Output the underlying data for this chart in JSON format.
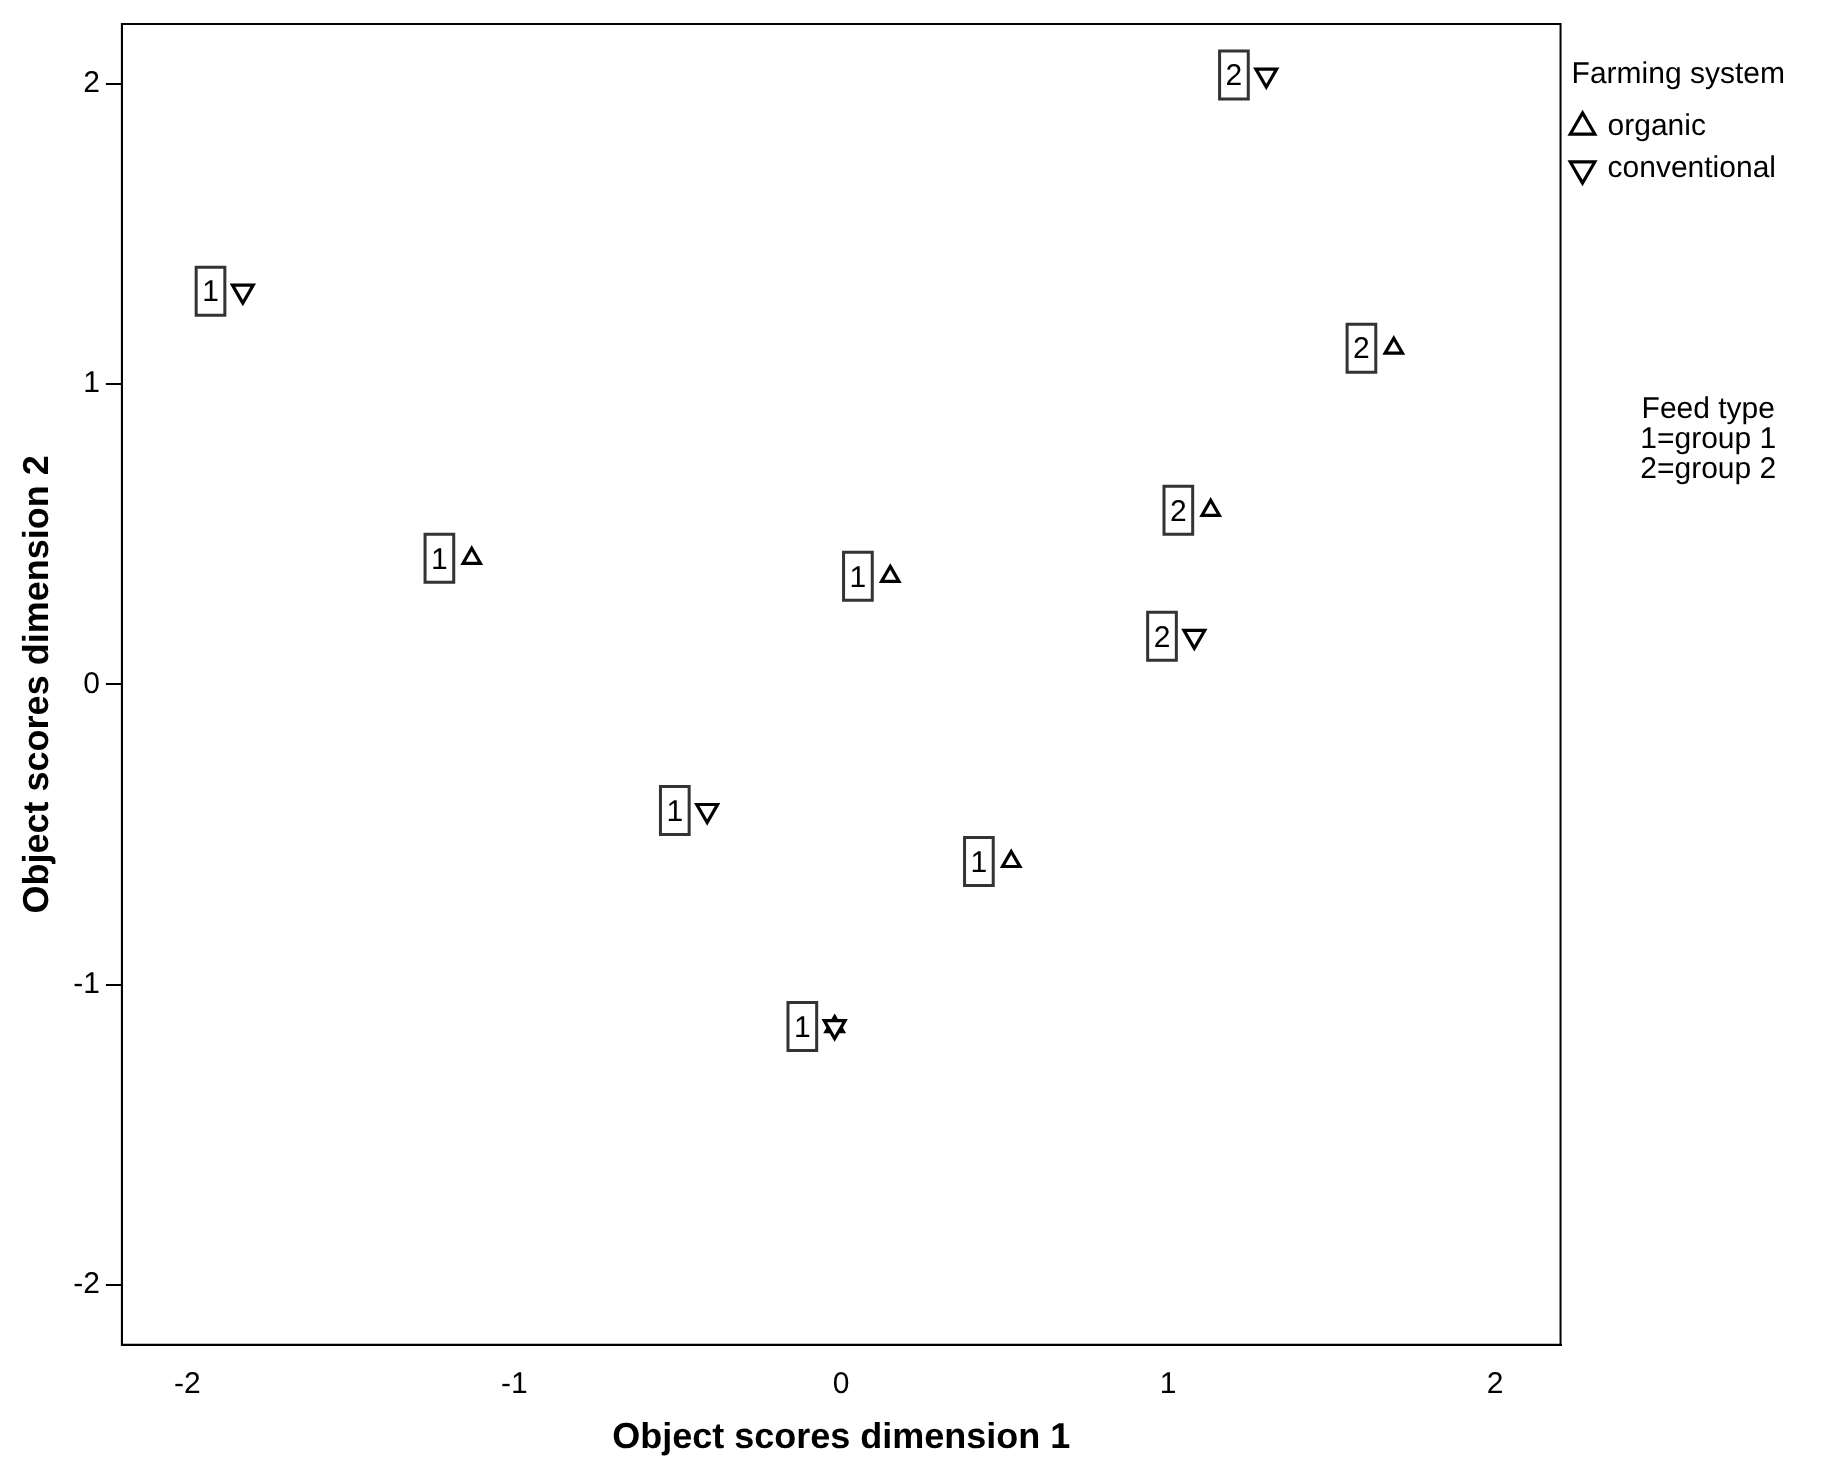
{
  "chart_data": {
    "type": "scatter",
    "xlabel": "Object scores dimension 1",
    "ylabel": "Object scores dimension 2",
    "legend_title": "Farming system",
    "annotations": [
      "Feed type",
      "1=group 1",
      "2=group 2",
      {
        "text": "2",
        "x": 1.69,
        "y": 1.12
      },
      {
        "text": "1",
        "x": -1.13,
        "y": 0.42
      },
      {
        "text": "1",
        "x": 0.15,
        "y": 0.36
      },
      {
        "text": "2",
        "x": 1.13,
        "y": 0.58
      },
      {
        "text": "1",
        "x": 0.52,
        "y": -0.59
      },
      {
        "text": "1",
        "x": -0.02,
        "y": -1.14
      },
      {
        "text": "1",
        "x": -1.83,
        "y": 1.31
      },
      {
        "text": "2",
        "x": 1.3,
        "y": 2.03
      },
      {
        "text": "2",
        "x": 1.08,
        "y": 0.16
      },
      {
        "text": "1",
        "x": -0.41,
        "y": -0.42
      }
    ],
    "xlim": [
      -2.2,
      2.2
    ],
    "ylim": [
      -2.2,
      2.2
    ],
    "xticks": [
      -2,
      -1,
      0,
      1,
      2
    ],
    "yticks": [
      -2,
      -1,
      0,
      1,
      2
    ],
    "grid": false,
    "legend": "top right",
    "marker": "triangle",
    "series": [
      {
        "name": "organic",
        "color": "#000000",
        "x": [
          1.69,
          -1.13,
          0.15,
          1.13,
          0.52,
          -0.02
        ],
        "values": [
          1.12,
          0.42,
          0.36,
          0.58,
          -0.59,
          -1.14
        ]
      },
      {
        "name": "conventional",
        "color": "#000000",
        "x": [
          -1.83,
          1.3,
          1.08,
          -0.41,
          -0.02
        ],
        "values": [
          1.31,
          2.03,
          0.16,
          -0.42,
          -1.14
        ]
      }
    ]
  }
}
